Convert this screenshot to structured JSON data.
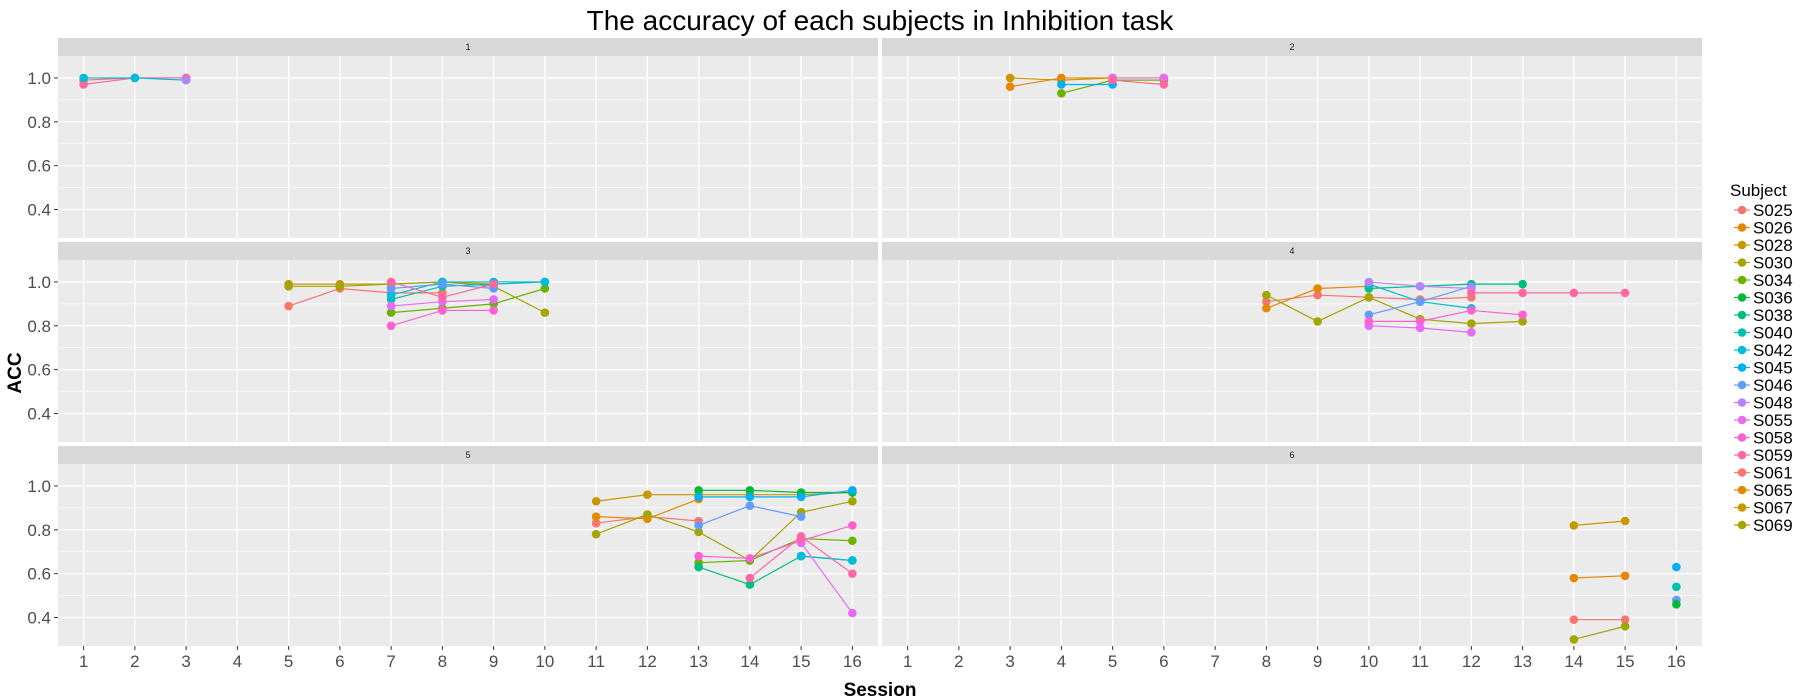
{
  "chart_data": {
    "type": "line",
    "title": "The accuracy of each subjects in Inhibition task",
    "xlabel": "Session",
    "ylabel": "ACC",
    "x_ticks": [
      1,
      2,
      3,
      4,
      5,
      6,
      7,
      8,
      9,
      10,
      11,
      12,
      13,
      14,
      15,
      16
    ],
    "y_ticks": [
      0.4,
      0.6,
      0.8,
      1.0
    ],
    "y_tick_labels": [
      "0.4",
      "0.6",
      "0.8",
      "1.0"
    ],
    "xlim": [
      0.5,
      16.5
    ],
    "ylim": [
      0.27,
      1.1
    ],
    "grid": true,
    "legend": {
      "title": "Subject",
      "position": "right"
    },
    "subjects": [
      {
        "name": "S025",
        "color": "#F8766D"
      },
      {
        "name": "S026",
        "color": "#E58700"
      },
      {
        "name": "S028",
        "color": "#C99800"
      },
      {
        "name": "S030",
        "color": "#A3A500"
      },
      {
        "name": "S034",
        "color": "#6BB100"
      },
      {
        "name": "S036",
        "color": "#00BA38"
      },
      {
        "name": "S038",
        "color": "#00BF7D"
      },
      {
        "name": "S040",
        "color": "#00C0AF"
      },
      {
        "name": "S042",
        "color": "#00BCD8"
      },
      {
        "name": "S045",
        "color": "#00B0F6"
      },
      {
        "name": "S046",
        "color": "#619CFF"
      },
      {
        "name": "S048",
        "color": "#B983FF"
      },
      {
        "name": "S055",
        "color": "#E76BF3"
      },
      {
        "name": "S058",
        "color": "#FD61D1"
      },
      {
        "name": "S059",
        "color": "#FF67A4"
      },
      {
        "name": "S061",
        "color": "#F8766D"
      },
      {
        "name": "S065",
        "color": "#E58700"
      },
      {
        "name": "S067",
        "color": "#C99800"
      },
      {
        "name": "S069",
        "color": "#A3A500"
      }
    ],
    "panels": [
      {
        "label": "1",
        "series": [
          {
            "color": "#F8766D",
            "points": [
              [
                1,
                0.99
              ],
              [
                2,
                1.0
              ],
              [
                3,
                1.0
              ]
            ]
          },
          {
            "color": "#FF67A4",
            "points": [
              [
                1,
                0.97
              ],
              [
                2,
                1.0
              ],
              [
                3,
                1.0
              ]
            ]
          },
          {
            "color": "#00BCD8",
            "points": [
              [
                1,
                1.0
              ],
              [
                2,
                1.0
              ],
              [
                3,
                0.99
              ]
            ]
          },
          {
            "color": "#B983FF",
            "points": [
              [
                3,
                0.99
              ]
            ]
          }
        ]
      },
      {
        "label": "2",
        "series": [
          {
            "color": "#C99800",
            "points": [
              [
                3,
                1.0
              ],
              [
                4,
                0.99
              ],
              [
                5,
                1.0
              ]
            ]
          },
          {
            "color": "#E58700",
            "points": [
              [
                3,
                0.96
              ],
              [
                4,
                1.0
              ],
              [
                5,
                1.0
              ],
              [
                6,
                1.0
              ]
            ]
          },
          {
            "color": "#6BB100",
            "points": [
              [
                4,
                0.93
              ],
              [
                5,
                0.99
              ],
              [
                6,
                0.99
              ]
            ]
          },
          {
            "color": "#00B0F6",
            "points": [
              [
                4,
                0.97
              ],
              [
                5,
                0.97
              ]
            ]
          },
          {
            "color": "#E76BF3",
            "points": [
              [
                5,
                1.0
              ],
              [
                6,
                1.0
              ]
            ]
          },
          {
            "color": "#FF67A4",
            "points": [
              [
                5,
                0.99
              ],
              [
                6,
                0.97
              ]
            ]
          }
        ]
      },
      {
        "label": "3",
        "series": [
          {
            "color": "#F8766D",
            "points": [
              [
                5,
                0.89
              ],
              [
                6,
                0.97
              ],
              [
                7,
                0.95
              ],
              [
                8,
                0.95
              ]
            ]
          },
          {
            "color": "#C99800",
            "points": [
              [
                5,
                0.99
              ],
              [
                6,
                0.99
              ],
              [
                7,
                0.99
              ],
              [
                8,
                1.0
              ],
              [
                9,
                0.99
              ]
            ]
          },
          {
            "color": "#A3A500",
            "points": [
              [
                5,
                0.98
              ],
              [
                6,
                0.98
              ],
              [
                7,
                0.99
              ],
              [
                8,
                1.0
              ],
              [
                9,
                0.98
              ],
              [
                10,
                0.86
              ]
            ]
          },
          {
            "color": "#6BB100",
            "points": [
              [
                7,
                0.86
              ],
              [
                8,
                0.88
              ],
              [
                9,
                0.9
              ],
              [
                10,
                0.97
              ]
            ]
          },
          {
            "color": "#00C0AF",
            "points": [
              [
                7,
                0.92
              ],
              [
                8,
                0.98
              ],
              [
                9,
                0.99
              ],
              [
                10,
                1.0
              ]
            ]
          },
          {
            "color": "#00BCD8",
            "points": [
              [
                7,
                0.94
              ],
              [
                8,
                1.0
              ],
              [
                9,
                1.0
              ],
              [
                10,
                1.0
              ]
            ]
          },
          {
            "color": "#619CFF",
            "points": [
              [
                7,
                0.97
              ],
              [
                8,
                0.99
              ],
              [
                9,
                0.97
              ]
            ]
          },
          {
            "color": "#E76BF3",
            "points": [
              [
                7,
                0.89
              ],
              [
                8,
                0.91
              ],
              [
                9,
                0.92
              ]
            ]
          },
          {
            "color": "#FD61D1",
            "points": [
              [
                7,
                0.8
              ],
              [
                8,
                0.87
              ],
              [
                9,
                0.87
              ]
            ]
          },
          {
            "color": "#FF67A4",
            "points": [
              [
                7,
                1.0
              ],
              [
                8,
                0.93
              ],
              [
                9,
                0.99
              ]
            ]
          }
        ]
      },
      {
        "label": "4",
        "series": [
          {
            "color": "#F8766D",
            "points": [
              [
                8,
                0.91
              ],
              [
                9,
                0.94
              ],
              [
                10,
                0.93
              ],
              [
                11,
                0.92
              ],
              [
                12,
                0.93
              ]
            ]
          },
          {
            "color": "#E58700",
            "points": [
              [
                8,
                0.88
              ],
              [
                9,
                0.97
              ],
              [
                10,
                0.98
              ]
            ]
          },
          {
            "color": "#A3A500",
            "points": [
              [
                8,
                0.94
              ],
              [
                9,
                0.82
              ],
              [
                10,
                0.93
              ],
              [
                11,
                0.83
              ],
              [
                12,
                0.81
              ],
              [
                13,
                0.82
              ]
            ]
          },
          {
            "color": "#00BF7D",
            "points": [
              [
                10,
                0.97
              ],
              [
                11,
                0.98
              ],
              [
                12,
                0.99
              ],
              [
                13,
                0.99
              ]
            ]
          },
          {
            "color": "#00BCD8",
            "points": [
              [
                10,
                0.99
              ],
              [
                11,
                0.91
              ],
              [
                12,
                0.88
              ]
            ]
          },
          {
            "color": "#619CFF",
            "points": [
              [
                10,
                0.85
              ],
              [
                11,
                0.91
              ],
              [
                12,
                0.98
              ]
            ]
          },
          {
            "color": "#B983FF",
            "points": [
              [
                10,
                1.0
              ],
              [
                11,
                0.98
              ],
              [
                12,
                0.97
              ]
            ]
          },
          {
            "color": "#E76BF3",
            "points": [
              [
                10,
                0.8
              ],
              [
                11,
                0.79
              ],
              [
                12,
                0.77
              ]
            ]
          },
          {
            "color": "#FD61D1",
            "points": [
              [
                10,
                0.82
              ],
              [
                11,
                0.82
              ],
              [
                12,
                0.87
              ],
              [
                13,
                0.85
              ]
            ]
          },
          {
            "color": "#FF67A4",
            "points": [
              [
                12,
                0.95
              ],
              [
                13,
                0.95
              ],
              [
                14,
                0.95
              ],
              [
                15,
                0.95
              ]
            ]
          }
        ]
      },
      {
        "label": "5",
        "series": [
          {
            "color": "#F8766D",
            "points": [
              [
                11,
                0.83
              ],
              [
                12,
                0.86
              ],
              [
                13,
                0.84
              ]
            ]
          },
          {
            "color": "#E58700",
            "points": [
              [
                11,
                0.86
              ],
              [
                12,
                0.85
              ],
              [
                13,
                0.94
              ]
            ]
          },
          {
            "color": "#C99800",
            "points": [
              [
                11,
                0.93
              ],
              [
                12,
                0.96
              ],
              [
                13,
                0.96
              ],
              [
                14,
                0.96
              ],
              [
                15,
                0.96
              ],
              [
                16,
                0.97
              ]
            ]
          },
          {
            "color": "#A3A500",
            "points": [
              [
                11,
                0.78
              ],
              [
                12,
                0.87
              ],
              [
                13,
                0.79
              ],
              [
                14,
                0.66
              ],
              [
                15,
                0.88
              ],
              [
                16,
                0.93
              ]
            ]
          },
          {
            "color": "#6BB100",
            "points": [
              [
                13,
                0.65
              ],
              [
                14,
                0.66
              ],
              [
                15,
                0.76
              ],
              [
                16,
                0.75
              ]
            ]
          },
          {
            "color": "#00BF7D",
            "points": [
              [
                13,
                0.63
              ],
              [
                14,
                0.55
              ],
              [
                15,
                0.68
              ],
              [
                16,
                0.66
              ]
            ]
          },
          {
            "color": "#00BA38",
            "points": [
              [
                13,
                0.98
              ],
              [
                14,
                0.98
              ],
              [
                15,
                0.97
              ],
              [
                16,
                0.97
              ]
            ]
          },
          {
            "color": "#00B0F6",
            "points": [
              [
                13,
                0.95
              ],
              [
                14,
                0.95
              ],
              [
                15,
                0.95
              ],
              [
                16,
                0.98
              ]
            ]
          },
          {
            "color": "#00BCD8",
            "points": [
              [
                15,
                0.68
              ],
              [
                16,
                0.66
              ]
            ]
          },
          {
            "color": "#619CFF",
            "points": [
              [
                13,
                0.82
              ],
              [
                14,
                0.91
              ],
              [
                15,
                0.86
              ]
            ]
          },
          {
            "color": "#E76BF3",
            "points": [
              [
                15,
                0.74
              ],
              [
                16,
                0.42
              ]
            ]
          },
          {
            "color": "#FD61D1",
            "points": [
              [
                13,
                0.68
              ],
              [
                14,
                0.67
              ],
              [
                15,
                0.75
              ],
              [
                16,
                0.82
              ]
            ]
          },
          {
            "color": "#FF67A4",
            "points": [
              [
                14,
                0.58
              ],
              [
                15,
                0.77
              ],
              [
                16,
                0.6
              ]
            ]
          }
        ]
      },
      {
        "label": "6",
        "series": [
          {
            "color": "#C99800",
            "points": [
              [
                14,
                0.82
              ],
              [
                15,
                0.84
              ]
            ]
          },
          {
            "color": "#E58700",
            "points": [
              [
                14,
                0.58
              ],
              [
                15,
                0.59
              ]
            ]
          },
          {
            "color": "#F8766D",
            "points": [
              [
                14,
                0.39
              ],
              [
                15,
                0.39
              ]
            ]
          },
          {
            "color": "#A3A500",
            "points": [
              [
                14,
                0.3
              ],
              [
                15,
                0.36
              ]
            ]
          },
          {
            "color": "#00B0F6",
            "points": [
              [
                16,
                0.63
              ]
            ]
          },
          {
            "color": "#00C0AF",
            "points": [
              [
                16,
                0.54
              ]
            ]
          },
          {
            "color": "#619CFF",
            "points": [
              [
                16,
                0.48
              ]
            ]
          },
          {
            "color": "#00BA38",
            "points": [
              [
                16,
                0.46
              ]
            ]
          }
        ]
      }
    ]
  }
}
